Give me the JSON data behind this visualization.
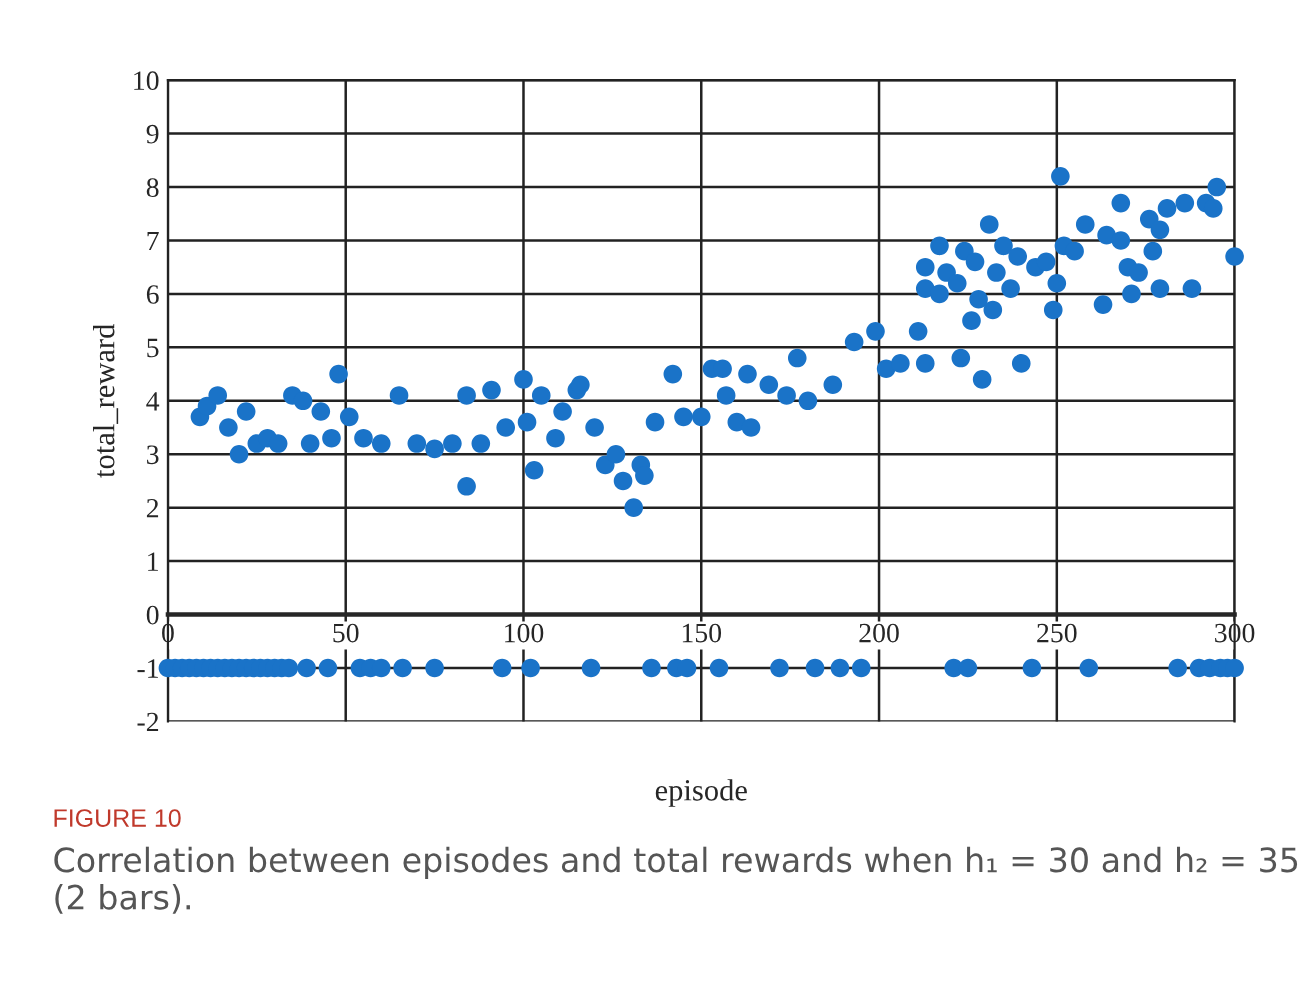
{
  "chart_data": {
    "type": "scatter",
    "xlabel": "episode",
    "ylabel": "total_reward",
    "annotations": [
      "FIGURE 10",
      "Correlation between episodes and total rewards when h₁ = 30 and h₂ = 35 (2 bars)."
    ],
    "series": [
      {
        "color": "#1a73c8",
        "x": [
          0,
          2,
          4,
          6,
          8,
          10,
          12,
          14,
          16,
          18,
          20,
          22,
          24,
          26,
          28,
          30,
          32,
          34,
          39,
          45,
          54,
          57,
          60,
          66,
          75,
          94,
          102,
          119,
          136,
          143,
          146,
          155,
          172,
          182,
          189,
          195,
          221,
          225,
          243,
          259,
          284,
          290,
          293,
          296,
          298,
          300,
          9,
          11,
          14,
          17,
          20,
          22,
          25,
          28,
          31,
          35,
          38,
          40,
          43,
          46,
          48,
          51,
          55,
          60,
          65,
          70,
          75,
          80,
          84,
          84,
          88,
          91,
          95,
          100,
          101,
          103,
          105,
          109,
          111,
          115,
          116,
          120,
          123,
          126,
          128,
          131,
          133,
          134,
          137,
          142,
          145,
          150,
          153,
          156,
          157,
          160,
          163,
          164,
          169,
          174,
          177,
          180,
          187,
          193,
          199,
          202,
          206,
          211,
          213,
          213,
          213,
          217,
          217,
          219,
          222,
          223,
          224,
          226,
          227,
          228,
          229,
          231,
          232,
          233,
          235,
          237,
          239,
          240,
          244,
          247,
          249,
          250,
          251,
          252,
          255,
          258,
          264,
          263,
          268,
          268,
          270,
          271,
          273,
          276,
          277,
          279,
          279,
          281,
          286,
          288,
          292,
          294,
          295,
          300
        ],
        "values": [
          -1,
          -1,
          -1,
          -1,
          -1,
          -1,
          -1,
          -1,
          -1,
          -1,
          -1,
          -1,
          -1,
          -1,
          -1,
          -1,
          -1,
          -1,
          -1,
          -1,
          -1,
          -1,
          -1,
          -1,
          -1,
          -1,
          -1,
          -1,
          -1,
          -1,
          -1,
          -1,
          -1,
          -1,
          -1,
          -1,
          -1,
          -1,
          -1,
          -1,
          -1,
          -1,
          -1,
          -1,
          -1,
          -1,
          3.7,
          3.9,
          4.1,
          3.5,
          3.0,
          3.8,
          3.2,
          3.3,
          3.2,
          4.1,
          4.0,
          3.2,
          3.8,
          3.3,
          4.5,
          3.7,
          3.3,
          3.2,
          4.1,
          3.2,
          3.1,
          3.2,
          2.4,
          4.1,
          3.2,
          4.2,
          3.5,
          4.4,
          3.6,
          2.7,
          4.1,
          3.3,
          3.8,
          4.2,
          4.3,
          3.5,
          2.8,
          3.0,
          2.5,
          2.0,
          2.8,
          2.6,
          3.6,
          4.5,
          3.7,
          3.7,
          4.6,
          4.6,
          4.1,
          3.6,
          4.5,
          3.5,
          4.3,
          4.1,
          4.8,
          4.0,
          4.3,
          5.1,
          5.3,
          4.6,
          4.7,
          5.3,
          4.7,
          6.5,
          6.1,
          6.9,
          6.0,
          6.4,
          6.2,
          4.8,
          6.8,
          5.5,
          6.6,
          5.9,
          4.4,
          7.3,
          5.7,
          6.4,
          6.9,
          6.1,
          6.7,
          4.7,
          6.5,
          6.6,
          5.7,
          6.2,
          8.2,
          6.9,
          6.8,
          7.3,
          7.1,
          5.8,
          7.0,
          7.7,
          6.5,
          6.0,
          6.4,
          7.4,
          6.8,
          6.1,
          7.2,
          7.6,
          7.7,
          6.1,
          7.7,
          7.6,
          8.0,
          6.7
        ]
      }
    ],
    "xlim": [
      0,
      300
    ],
    "ylim": [
      -2,
      10
    ],
    "xticks": [
      0,
      50,
      100,
      150,
      200,
      250,
      300
    ],
    "yticks": [
      -2,
      -1,
      0,
      1,
      2,
      3,
      4,
      5,
      6,
      7,
      8,
      9,
      10
    ],
    "grid": true,
    "marker": "circle"
  }
}
